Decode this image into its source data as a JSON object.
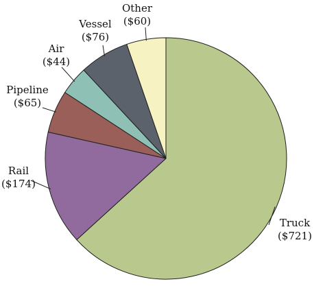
{
  "chart_data": {
    "type": "pie",
    "start_angle_deg": 0,
    "direction": "clockwise",
    "slices": [
      {
        "name": "Truck",
        "value": 721,
        "value_label": "($721)",
        "color": "#b9c98d"
      },
      {
        "name": "Rail",
        "value": 174,
        "value_label": "($174)",
        "color": "#926b9e"
      },
      {
        "name": "Pipeline",
        "value": 65,
        "value_label": "($65)",
        "color": "#9a5f59"
      },
      {
        "name": "Air",
        "value": 44,
        "value_label": "($44)",
        "color": "#8fc0b6"
      },
      {
        "name": "Vessel",
        "value": 76,
        "value_label": "($76)",
        "color": "#5b626b"
      },
      {
        "name": "Other",
        "value": 60,
        "value_label": "($60)",
        "color": "#f7f2c2"
      }
    ]
  }
}
